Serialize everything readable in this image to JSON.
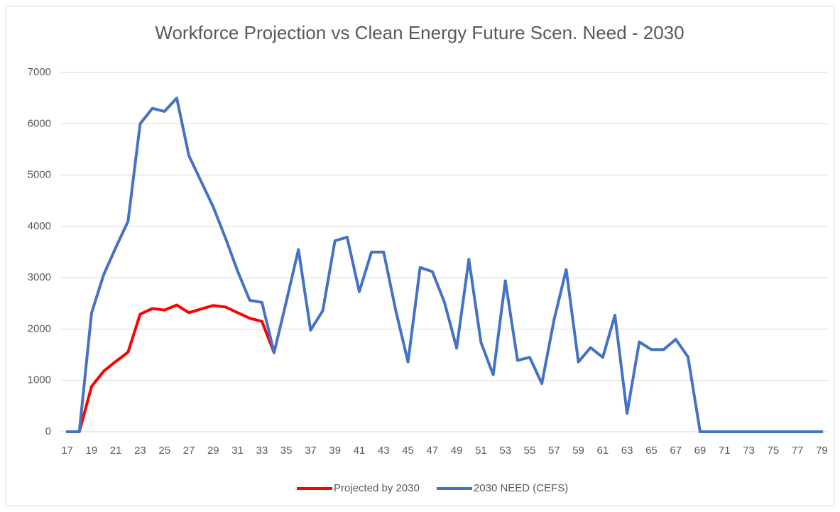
{
  "chart_data": {
    "type": "line",
    "title": "Workforce Projection vs Clean Energy Future Scen. Need - 2030",
    "categories": [
      "17",
      null,
      "19",
      null,
      "21",
      null,
      "23",
      null,
      "25",
      null,
      "27",
      null,
      "29",
      null,
      "31",
      null,
      "33",
      null,
      "35",
      null,
      "37",
      null,
      "39",
      null,
      "41",
      null,
      "43",
      null,
      "45",
      null,
      "47",
      null,
      "49",
      null,
      "51",
      null,
      "53",
      null,
      "55",
      null,
      "57",
      null,
      "59",
      null,
      "61",
      null,
      "63",
      null,
      "65",
      null,
      "67",
      null,
      "69",
      null,
      "71",
      null,
      "73",
      null,
      "75",
      null,
      "77",
      null,
      "79"
    ],
    "series": [
      {
        "name": "Projected by 2030",
        "color": "#ff0000",
        "values": [
          0,
          0,
          880,
          1180,
          1370,
          1550,
          2290,
          2400,
          2370,
          2470,
          2320,
          2390,
          2460,
          2430,
          2320,
          2210,
          2150,
          1540,
          null,
          null,
          null,
          null,
          null,
          null,
          null,
          null,
          null,
          null,
          null,
          null,
          null,
          null,
          null,
          null,
          null,
          null,
          null,
          null,
          null,
          null,
          null,
          null,
          null,
          null,
          null,
          null,
          null,
          null,
          null,
          null,
          null,
          null,
          null,
          null,
          null,
          null,
          null,
          null,
          null,
          null,
          null,
          null,
          null
        ]
      },
      {
        "name": "2030 NEED (CEFS)",
        "color": "#4472c4",
        "values": [
          0,
          0,
          2310,
          3060,
          3590,
          4100,
          6000,
          6300,
          6240,
          6500,
          5380,
          4880,
          4380,
          3780,
          3130,
          2560,
          2520,
          1540,
          2530,
          3550,
          1980,
          2360,
          3720,
          3790,
          2730,
          3500,
          3500,
          2360,
          1360,
          3200,
          3120,
          2520,
          1630,
          3360,
          1740,
          1110,
          2940,
          1390,
          1450,
          940,
          2180,
          3160,
          1360,
          1640,
          1450,
          2270,
          360,
          1750,
          1600,
          1600,
          1800,
          1460,
          0,
          0,
          0,
          0,
          0,
          0,
          0,
          0,
          0,
          0,
          0
        ]
      }
    ],
    "ylim": [
      0,
      7000
    ],
    "yticks": [
      0,
      1000,
      2000,
      3000,
      4000,
      5000,
      6000,
      7000
    ],
    "grid": true,
    "legend": "bottom"
  }
}
